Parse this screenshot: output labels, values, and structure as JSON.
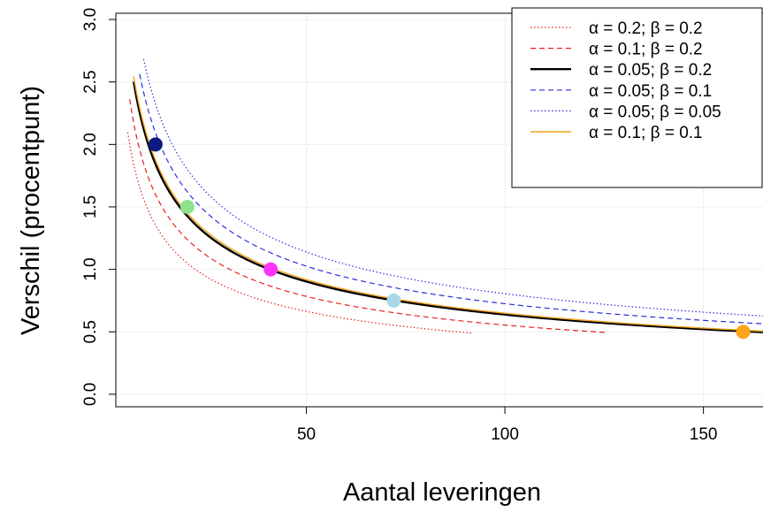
{
  "chart_data": {
    "type": "line",
    "xlabel": "Aantal leveringen",
    "ylabel": "Verschil (procentpunt)",
    "xlim": [
      2.0,
      165.0
    ],
    "ylim": [
      -0.1,
      3.05
    ],
    "xticks": [
      50,
      100,
      150
    ],
    "yticks": [
      0.0,
      0.5,
      1.0,
      1.5,
      2.0,
      2.5,
      3.0
    ],
    "ytick_labels": [
      "0.0",
      "0.5",
      "1.0",
      "1.5",
      "2.0",
      "2.5",
      "3.0"
    ],
    "grid": true,
    "legend_position": "top-right",
    "series": [
      {
        "name": "α = 0.2; β = 0.2",
        "color": "#e8221c",
        "dash": "dotted",
        "width": 1.2,
        "k": 4.69,
        "x_range": [
          5.0,
          91.5
        ]
      },
      {
        "name": "α = 0.1; β = 0.2",
        "color": "#e8221c",
        "dash": "dashed",
        "width": 1.2,
        "k": 5.54,
        "x_range": [
          5.5,
          126
        ]
      },
      {
        "name": "α = 0.05; β = 0.2",
        "color": "#000000",
        "dash": "solid",
        "width": 2.4,
        "k": 6.38,
        "x_range": [
          6.5,
          165
        ]
      },
      {
        "name": "α = 0.05; β = 0.1",
        "color": "#2b30d9",
        "dash": "dashed",
        "width": 1.2,
        "k": 7.25,
        "x_range": [
          8.0,
          165
        ]
      },
      {
        "name": "α = 0.05; β = 0.05",
        "color": "#2b30d9",
        "dash": "dotted",
        "width": 1.2,
        "k": 8.05,
        "x_range": [
          9.0,
          165
        ]
      },
      {
        "name": "α = 0.1; β = 0.1",
        "color": "#f2a31a",
        "dash": "solid",
        "width": 1.4,
        "k": 6.49,
        "x_range": [
          6.5,
          165
        ]
      }
    ],
    "points": [
      {
        "x": 12,
        "y": 2.0,
        "color": "#0a1a80"
      },
      {
        "x": 20,
        "y": 1.5,
        "color": "#8fe38f"
      },
      {
        "x": 41,
        "y": 1.0,
        "color": "#ff33ff"
      },
      {
        "x": 72,
        "y": 0.75,
        "color": "#a9d8e6"
      },
      {
        "x": 160,
        "y": 0.5,
        "color": "#ffa31a"
      }
    ]
  }
}
